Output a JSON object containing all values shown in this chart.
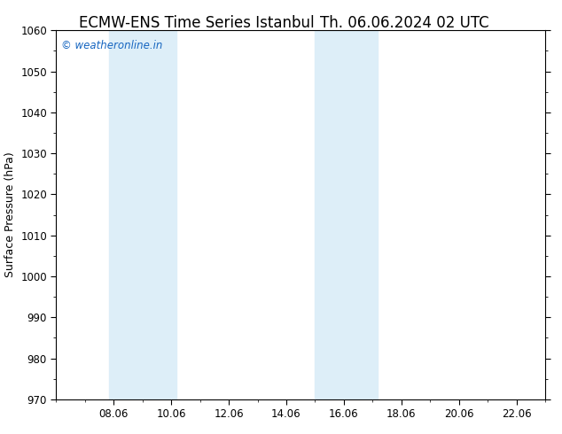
{
  "title_left": "ECMW-ENS Time Series Istanbul",
  "title_right": "Th. 06.06.2024 02 UTC",
  "ylabel": "Surface Pressure (hPa)",
  "ylim": [
    970,
    1060
  ],
  "ytick_step": 10,
  "xtick_positions": [
    8,
    10,
    12,
    14,
    16,
    18,
    20,
    22
  ],
  "xtick_labels": [
    "08.06",
    "10.06",
    "12.06",
    "14.06",
    "16.06",
    "18.06",
    "20.06",
    "22.06"
  ],
  "xlim": [
    6.0,
    23.0
  ],
  "band1_x1": 7.83,
  "band1_x2": 10.17,
  "band2_x1": 15.0,
  "band2_x2": 17.17,
  "band_color": "#ddeef8",
  "band_alpha": 1.0,
  "watermark_text": "© weatheronline.in",
  "watermark_color": "#1565c0",
  "watermark_fontsize": 8.5,
  "bg_color": "#ffffff",
  "border_color": "#000000",
  "title_fontsize": 12,
  "ylabel_fontsize": 9,
  "tick_fontsize": 8.5,
  "fig_width": 6.34,
  "fig_height": 4.9,
  "dpi": 100
}
